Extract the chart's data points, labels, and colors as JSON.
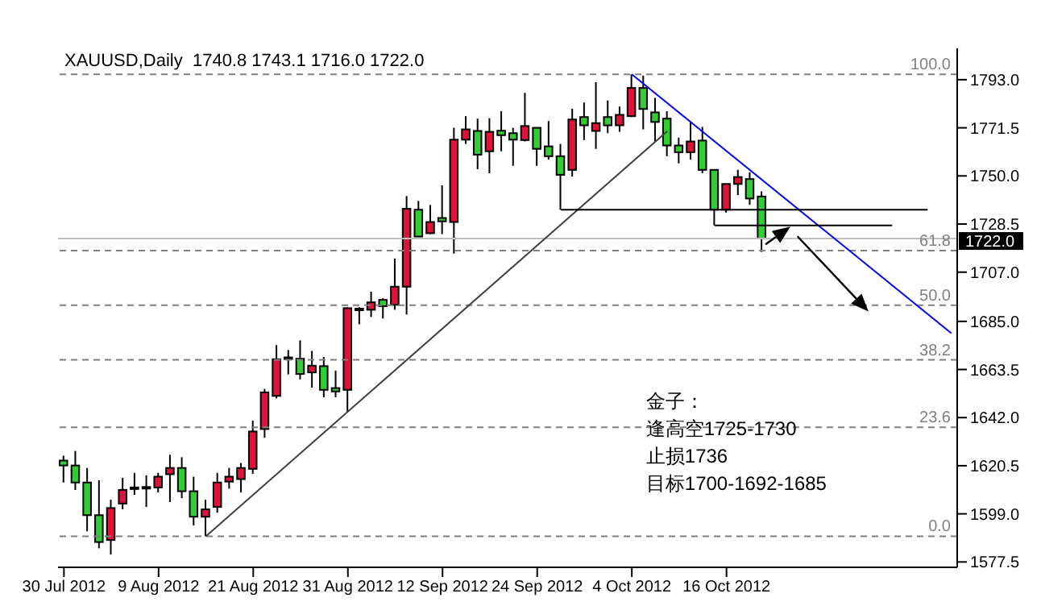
{
  "chart_data": {
    "type": "candlestick",
    "title": "XAUUSD,Daily  1740.8 1743.1 1716.0 1722.0",
    "categories": [
      "30 Jul 2012",
      null,
      null,
      null,
      null,
      null,
      null,
      null,
      "9 Aug 2012",
      null,
      null,
      null,
      null,
      null,
      null,
      null,
      "21 Aug 2012",
      null,
      null,
      null,
      null,
      null,
      null,
      null,
      "31 Aug 2012",
      null,
      null,
      null,
      null,
      null,
      null,
      null,
      "12 Sep 2012",
      null,
      null,
      null,
      null,
      null,
      null,
      null,
      "24 Sep 2012",
      null,
      null,
      null,
      null,
      null,
      null,
      null,
      "4 Oct 2012",
      null,
      null,
      null,
      null,
      null,
      null,
      null,
      "16 Oct 2012",
      null,
      null,
      null,
      null,
      null,
      null,
      null,
      null,
      null,
      null,
      null,
      null,
      null,
      null,
      null,
      null,
      null,
      null,
      null
    ],
    "ohlc": [
      [
        1622.8,
        1625,
        1613,
        1620.6
      ],
      [
        1620.6,
        1627.1,
        1609.7,
        1613.0
      ],
      [
        1613.0,
        1619.5,
        1591.2,
        1598.4
      ],
      [
        1598.4,
        1614,
        1583.6,
        1586.4
      ],
      [
        1587.3,
        1605.3,
        1580.8,
        1601.6
      ],
      [
        1603.6,
        1615.1,
        1601.0,
        1609.7
      ],
      [
        1610.1,
        1617.3,
        1607.5,
        1610.8
      ],
      [
        1610.6,
        1616.2,
        1602.1,
        1611.0
      ],
      [
        1610.8,
        1617.3,
        1608.6,
        1615.6
      ],
      [
        1616.7,
        1625.4,
        1604.3,
        1619.5
      ],
      [
        1619.5,
        1624.3,
        1606.0,
        1609.1
      ],
      [
        1609.1,
        1615.6,
        1593.8,
        1597.7
      ],
      [
        1597.7,
        1605.3,
        1589.0,
        1601.0
      ],
      [
        1602.1,
        1617.3,
        1599.5,
        1613.0
      ],
      [
        1613.4,
        1619.5,
        1610.3,
        1615.6
      ],
      [
        1614.5,
        1621.7,
        1608.6,
        1619.5
      ],
      [
        1619.1,
        1640.6,
        1616.9,
        1635.8
      ],
      [
        1636.9,
        1654.8,
        1633.0,
        1653.3
      ],
      [
        1651.7,
        1674.4,
        1650.6,
        1668.1
      ],
      [
        1668.6,
        1672.2,
        1661.3,
        1668.9
      ],
      [
        1668.3,
        1676.5,
        1659.1,
        1661.5
      ],
      [
        1662.2,
        1671.8,
        1655.4,
        1665.2
      ],
      [
        1665.0,
        1669.1,
        1651.1,
        1654.4
      ],
      [
        1655.2,
        1663.0,
        1651.1,
        1653.7
      ],
      [
        1654.4,
        1691.3,
        1644.5,
        1690.9
      ],
      [
        1690.5,
        1691.3,
        1683.7,
        1690.7
      ],
      [
        1690.2,
        1698.3,
        1687.0,
        1693.5
      ],
      [
        1694.6,
        1695.3,
        1686.3,
        1691.8
      ],
      [
        1692.4,
        1713.1,
        1690.2,
        1700.5
      ],
      [
        1700.5,
        1741.0,
        1688.1,
        1735.3
      ],
      [
        1734.9,
        1738.8,
        1722.9,
        1722.9
      ],
      [
        1724.4,
        1737.0,
        1724.0,
        1729.4
      ],
      [
        1731.2,
        1745.8,
        1724.0,
        1729.7
      ],
      [
        1729.4,
        1771.5,
        1715.3,
        1766.2
      ],
      [
        1766.2,
        1776.7,
        1764.3,
        1770.8
      ],
      [
        1770.1,
        1775.6,
        1753.0,
        1759.5
      ],
      [
        1761.0,
        1775.8,
        1751.2,
        1769.7
      ],
      [
        1770.2,
        1778.9,
        1761.0,
        1768.2
      ],
      [
        1769.1,
        1771.5,
        1754.5,
        1766.2
      ],
      [
        1766.0,
        1787.1,
        1765.4,
        1772.3
      ],
      [
        1771.5,
        1771.5,
        1754.5,
        1762.1
      ],
      [
        1763.2,
        1774.5,
        1757.3,
        1758.8
      ],
      [
        1758.8,
        1764.3,
        1734.9,
        1750.5
      ],
      [
        1752.7,
        1780.0,
        1749.7,
        1775.2
      ],
      [
        1776.3,
        1782.8,
        1766.0,
        1772.6
      ],
      [
        1770.1,
        1791.9,
        1762.1,
        1773.6
      ],
      [
        1776.3,
        1783.7,
        1769.1,
        1772.6
      ],
      [
        1772.6,
        1781.0,
        1769.7,
        1777.3
      ],
      [
        1776.7,
        1795.4,
        1776.3,
        1789.3
      ],
      [
        1789.3,
        1794.8,
        1770.8,
        1779.9
      ],
      [
        1778.4,
        1784.9,
        1765.4,
        1774.1
      ],
      [
        1775.6,
        1778.9,
        1758.8,
        1763.6
      ],
      [
        1763.6,
        1767.1,
        1755.6,
        1760.6
      ],
      [
        1760.6,
        1774.1,
        1757.3,
        1765.4
      ],
      [
        1765.8,
        1771.9,
        1751.2,
        1752.7
      ],
      [
        1752.7,
        1752.7,
        1727.9,
        1734.9
      ],
      [
        1734.9,
        1746.4,
        1733.6,
        1746.4
      ],
      [
        1746.4,
        1752.7,
        1741.4,
        1749.5
      ],
      [
        1748.6,
        1751.6,
        1737.1,
        1739.9
      ],
      [
        1740.8,
        1743.1,
        1716.0,
        1722.0
      ],
      null,
      null,
      null,
      null,
      null,
      null,
      null,
      null,
      null,
      null,
      null,
      null,
      null,
      null,
      null,
      null
    ],
    "colors": [
      "#32cd32",
      "#32cd32",
      "#32cd32",
      "#32cd32",
      "#dc143c",
      "#dc143c",
      "#dc143c",
      "#dc143c",
      "#dc143c",
      "#dc143c",
      "#32cd32",
      "#32cd32",
      "#dc143c",
      "#dc143c",
      "#dc143c",
      "#dc143c",
      "#dc143c",
      "#dc143c",
      "#dc143c",
      "#dc143c",
      "#32cd32",
      "#dc143c",
      "#32cd32",
      "#32cd32",
      "#dc143c",
      "#dc143c",
      "#dc143c",
      "#32cd32",
      "#dc143c",
      "#dc143c",
      "#32cd32",
      "#dc143c",
      "#32cd32",
      "#dc143c",
      "#dc143c",
      "#32cd32",
      "#dc143c",
      "#32cd32",
      "#32cd32",
      "#dc143c",
      "#32cd32",
      "#32cd32",
      "#32cd32",
      "#dc143c",
      "#32cd32",
      "#dc143c",
      "#32cd32",
      "#dc143c",
      "#dc143c",
      "#32cd32",
      "#32cd32",
      "#32cd32",
      "#32cd32",
      "#dc143c",
      "#32cd32",
      "#32cd32",
      "#dc143c",
      "#dc143c",
      "#32cd32",
      "#32cd32",
      null,
      null,
      null,
      null,
      null,
      null,
      null,
      null,
      null,
      null,
      null,
      null,
      null,
      null,
      null,
      null
    ],
    "series": [
      {
        "type": "line",
        "color": "#404040",
        "values": [
          null,
          null,
          null,
          null,
          null,
          null,
          null,
          null,
          null,
          null,
          null,
          null,
          1589.0,
          null,
          null,
          null,
          null,
          null,
          null,
          null,
          null,
          null,
          null,
          null,
          null,
          null,
          null,
          null,
          null,
          null,
          null,
          null,
          null,
          null,
          null,
          null,
          null,
          null,
          null,
          null,
          null,
          null,
          null,
          null,
          null,
          null,
          null,
          null,
          null,
          null,
          null,
          1770.0,
          null,
          null,
          null,
          null,
          null,
          null,
          null,
          null,
          null,
          null,
          null,
          null,
          null,
          null,
          null,
          null,
          null,
          null,
          null,
          null,
          null,
          null,
          null,
          null
        ]
      },
      {
        "type": "line",
        "color": "#0000ff",
        "values": [
          null,
          null,
          null,
          null,
          null,
          null,
          null,
          null,
          null,
          null,
          null,
          null,
          null,
          null,
          null,
          null,
          null,
          null,
          null,
          null,
          null,
          null,
          null,
          null,
          null,
          null,
          null,
          null,
          null,
          null,
          null,
          null,
          null,
          null,
          null,
          null,
          null,
          null,
          null,
          null,
          null,
          null,
          null,
          null,
          null,
          null,
          null,
          null,
          1795.4,
          null,
          null,
          null,
          null,
          null,
          null,
          null,
          null,
          null,
          null,
          null,
          null,
          null,
          null,
          null,
          null,
          null,
          null,
          null,
          null,
          null,
          null,
          null,
          null,
          null,
          null,
          1679.7
        ]
      },
      {
        "type": "line",
        "color": "#000000",
        "values": [
          null,
          null,
          null,
          null,
          null,
          null,
          null,
          null,
          null,
          null,
          null,
          null,
          null,
          null,
          null,
          null,
          null,
          null,
          null,
          null,
          null,
          null,
          null,
          null,
          null,
          null,
          null,
          null,
          null,
          null,
          null,
          null,
          null,
          null,
          null,
          null,
          null,
          null,
          null,
          null,
          null,
          null,
          1734.9,
          null,
          null,
          null,
          null,
          null,
          null,
          null,
          null,
          null,
          null,
          null,
          null,
          null,
          null,
          null,
          null,
          null,
          null,
          null,
          null,
          null,
          null,
          null,
          null,
          null,
          null,
          null,
          null,
          null,
          null,
          1734.9,
          null,
          null
        ]
      },
      {
        "type": "line",
        "color": "#000000",
        "values": [
          null,
          null,
          null,
          null,
          null,
          null,
          null,
          null,
          null,
          null,
          null,
          null,
          null,
          null,
          null,
          null,
          null,
          null,
          null,
          null,
          null,
          null,
          null,
          null,
          null,
          null,
          null,
          null,
          null,
          null,
          null,
          null,
          null,
          null,
          null,
          null,
          null,
          null,
          null,
          null,
          null,
          null,
          null,
          null,
          null,
          null,
          null,
          null,
          null,
          null,
          null,
          null,
          null,
          null,
          null,
          1727.9,
          null,
          null,
          null,
          null,
          null,
          null,
          null,
          null,
          null,
          null,
          null,
          null,
          null,
          null,
          1727.9,
          null,
          null,
          null,
          null,
          null
        ]
      }
    ],
    "ylim": [
      1575.1,
      1807.0
    ],
    "yticks": [
      {
        "value": 1577.5,
        "label": "1577.5"
      },
      {
        "value": 1599,
        "label": "1599.0"
      },
      {
        "value": 1620.5,
        "label": "1620.5"
      },
      {
        "value": 1642,
        "label": "1642.0"
      },
      {
        "value": 1663.5,
        "label": "1663.5"
      },
      {
        "value": 1685,
        "label": "1685.0"
      },
      {
        "value": 1707,
        "label": "1707.0"
      },
      {
        "value": 1728.5,
        "label": "1728.5"
      },
      {
        "value": 1750,
        "label": "1750.0"
      },
      {
        "value": 1771.5,
        "label": "1771.5"
      },
      {
        "value": 1793,
        "label": "1793.0"
      }
    ],
    "ref_lines": [
      {
        "axis": "y",
        "value": 1795.4,
        "color": "#808080",
        "line_style": "dashed"
      },
      {
        "axis": "y",
        "value": 1716.6,
        "color": "#808080",
        "line_style": "dashed"
      },
      {
        "axis": "y",
        "value": 1692.2,
        "color": "#808080",
        "line_style": "dashed"
      },
      {
        "axis": "y",
        "value": 1667.8,
        "color": "#808080",
        "line_style": "dashed"
      },
      {
        "axis": "y",
        "value": 1637.7,
        "color": "#808080",
        "line_style": "dashed"
      },
      {
        "axis": "y",
        "value": 1589.0,
        "color": "#808080",
        "line_style": "dashed"
      },
      {
        "axis": "y",
        "value": 1722.0,
        "label": "1722.0",
        "color": "#c0c0c0",
        "line_style": "solid"
      }
    ],
    "annotations": [
      "金子：",
      "逢高空1725-1730",
      "止损1736",
      "目标1700-1692-1685",
      {
        "text": "100.0",
        "y": 1795.4
      },
      {
        "text": "61.8",
        "y": 1716.6
      },
      {
        "text": "50.0",
        "y": 1692.2
      },
      {
        "text": "38.2",
        "y": 1667.8
      },
      {
        "text": "23.6",
        "y": 1637.7
      },
      {
        "text": "0.0",
        "y": 1589.0
      }
    ]
  }
}
